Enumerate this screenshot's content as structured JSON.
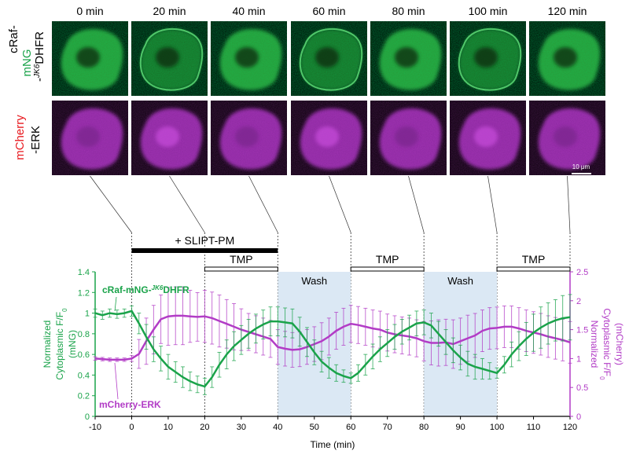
{
  "panel": {
    "time_labels": [
      "0 min",
      "20 min",
      "40 min",
      "60 min",
      "80 min",
      "100 min",
      "120 min"
    ],
    "row1_label": {
      "line1": "cRaf-",
      "line2": "mNG",
      "line3_sup": "JK6",
      "line3_prefix": "-",
      "line3_suffix": "DHFR"
    },
    "row2_label": {
      "line1": "mCherry",
      "line2": "-ERK"
    },
    "scale_bar": "10 μm",
    "colors": {
      "green": "#1aa34a",
      "magenta": "#b23cc6",
      "red_label": "#e8191f",
      "wash": "#dbe8f4"
    }
  },
  "treatments": {
    "slipt": "+ SLIPT-PM",
    "tmp": "TMP",
    "wash": "Wash"
  },
  "chart_data": {
    "type": "line",
    "xlabel": "Time (min)",
    "ylabel_left": [
      "Normalized",
      "Cytoplasmic F/F",
      "(mNG)"
    ],
    "ylabel_right": [
      "Normalized",
      "Cytoplasmic F/F",
      "(mCherry)"
    ],
    "xlim": [
      -10,
      120
    ],
    "ylim_left": [
      0,
      1.4
    ],
    "ylim_right": [
      0,
      2.5
    ],
    "x_ticks": [
      -10,
      0,
      10,
      20,
      30,
      40,
      50,
      60,
      70,
      80,
      90,
      100,
      110,
      120
    ],
    "y_ticks_left": [
      0,
      0.2,
      0.4,
      0.6,
      0.8,
      1,
      1.2,
      1.4
    ],
    "y_ticks_right": [
      0,
      0.5,
      1,
      1.5,
      2,
      2.5
    ],
    "slipt_range": [
      0,
      40
    ],
    "tmp_ranges": [
      [
        20,
        40
      ],
      [
        60,
        80
      ],
      [
        100,
        120
      ]
    ],
    "wash_ranges": [
      [
        40,
        60
      ],
      [
        80,
        100
      ]
    ],
    "series": [
      {
        "name": "cRaf-mNG-JK6DHFR",
        "axis": "left",
        "x": [
          -10,
          -8,
          -6,
          -4,
          -2,
          0,
          2,
          4,
          6,
          8,
          10,
          12,
          14,
          16,
          18,
          20,
          22,
          24,
          26,
          28,
          30,
          32,
          34,
          36,
          38,
          40,
          42,
          44,
          46,
          48,
          50,
          52,
          54,
          56,
          58,
          60,
          62,
          64,
          66,
          68,
          70,
          72,
          74,
          76,
          78,
          80,
          82,
          84,
          86,
          88,
          90,
          92,
          94,
          96,
          98,
          100,
          102,
          104,
          106,
          108,
          110,
          112,
          114,
          116,
          118,
          120
        ],
        "y": [
          1.0,
          0.98,
          1.0,
          0.99,
          1.0,
          1.02,
          0.9,
          0.77,
          0.65,
          0.56,
          0.48,
          0.43,
          0.38,
          0.34,
          0.31,
          0.29,
          0.38,
          0.5,
          0.6,
          0.68,
          0.74,
          0.8,
          0.85,
          0.89,
          0.92,
          0.92,
          0.91,
          0.9,
          0.82,
          0.72,
          0.62,
          0.53,
          0.47,
          0.42,
          0.39,
          0.37,
          0.42,
          0.5,
          0.58,
          0.65,
          0.71,
          0.77,
          0.82,
          0.86,
          0.9,
          0.91,
          0.88,
          0.8,
          0.72,
          0.64,
          0.57,
          0.51,
          0.48,
          0.46,
          0.44,
          0.42,
          0.5,
          0.6,
          0.68,
          0.75,
          0.81,
          0.86,
          0.9,
          0.93,
          0.95,
          0.96
        ],
        "err": [
          0.04,
          0.04,
          0.04,
          0.04,
          0.04,
          0.05,
          0.1,
          0.12,
          0.12,
          0.12,
          0.12,
          0.1,
          0.1,
          0.09,
          0.08,
          0.08,
          0.1,
          0.12,
          0.14,
          0.14,
          0.14,
          0.14,
          0.14,
          0.14,
          0.14,
          0.14,
          0.14,
          0.14,
          0.14,
          0.14,
          0.12,
          0.1,
          0.1,
          0.08,
          0.06,
          0.05,
          0.08,
          0.1,
          0.12,
          0.12,
          0.13,
          0.12,
          0.12,
          0.12,
          0.12,
          0.12,
          0.12,
          0.12,
          0.12,
          0.12,
          0.12,
          0.12,
          0.12,
          0.1,
          0.08,
          0.05,
          0.08,
          0.12,
          0.14,
          0.16,
          0.18,
          0.2,
          0.2,
          0.2,
          0.22,
          0.22
        ]
      },
      {
        "name": "mCherry-ERK",
        "axis": "right",
        "x": [
          -10,
          -8,
          -6,
          -4,
          -2,
          0,
          2,
          4,
          6,
          8,
          10,
          12,
          14,
          16,
          18,
          20,
          22,
          24,
          26,
          28,
          30,
          32,
          34,
          36,
          38,
          40,
          42,
          44,
          46,
          48,
          50,
          52,
          54,
          56,
          58,
          60,
          62,
          64,
          66,
          68,
          70,
          72,
          74,
          76,
          78,
          80,
          82,
          84,
          86,
          88,
          90,
          92,
          94,
          96,
          98,
          100,
          102,
          104,
          106,
          108,
          110,
          112,
          114,
          116,
          118,
          120
        ],
        "y": [
          1.0,
          0.99,
          0.98,
          0.98,
          0.98,
          1.0,
          1.08,
          1.3,
          1.5,
          1.68,
          1.73,
          1.74,
          1.74,
          1.73,
          1.72,
          1.73,
          1.7,
          1.65,
          1.6,
          1.55,
          1.5,
          1.46,
          1.42,
          1.38,
          1.34,
          1.2,
          1.17,
          1.15,
          1.16,
          1.2,
          1.25,
          1.3,
          1.38,
          1.48,
          1.55,
          1.6,
          1.58,
          1.55,
          1.52,
          1.5,
          1.45,
          1.42,
          1.4,
          1.38,
          1.35,
          1.3,
          1.27,
          1.27,
          1.28,
          1.25,
          1.3,
          1.35,
          1.4,
          1.48,
          1.52,
          1.53,
          1.55,
          1.55,
          1.52,
          1.48,
          1.45,
          1.42,
          1.38,
          1.35,
          1.32,
          1.28
        ],
        "err": [
          0.03,
          0.03,
          0.03,
          0.03,
          0.03,
          0.05,
          0.25,
          0.4,
          0.42,
          0.42,
          0.5,
          0.5,
          0.5,
          0.45,
          0.42,
          0.45,
          0.45,
          0.45,
          0.42,
          0.4,
          0.36,
          0.32,
          0.32,
          0.32,
          0.32,
          0.3,
          0.3,
          0.3,
          0.3,
          0.3,
          0.3,
          0.32,
          0.32,
          0.32,
          0.32,
          0.32,
          0.32,
          0.32,
          0.32,
          0.32,
          0.32,
          0.32,
          0.32,
          0.32,
          0.32,
          0.34,
          0.38,
          0.4,
          0.4,
          0.42,
          0.4,
          0.4,
          0.38,
          0.36,
          0.36,
          0.36,
          0.36,
          0.36,
          0.36,
          0.36,
          0.36,
          0.36,
          0.36,
          0.36,
          0.36,
          0.36
        ]
      }
    ]
  }
}
